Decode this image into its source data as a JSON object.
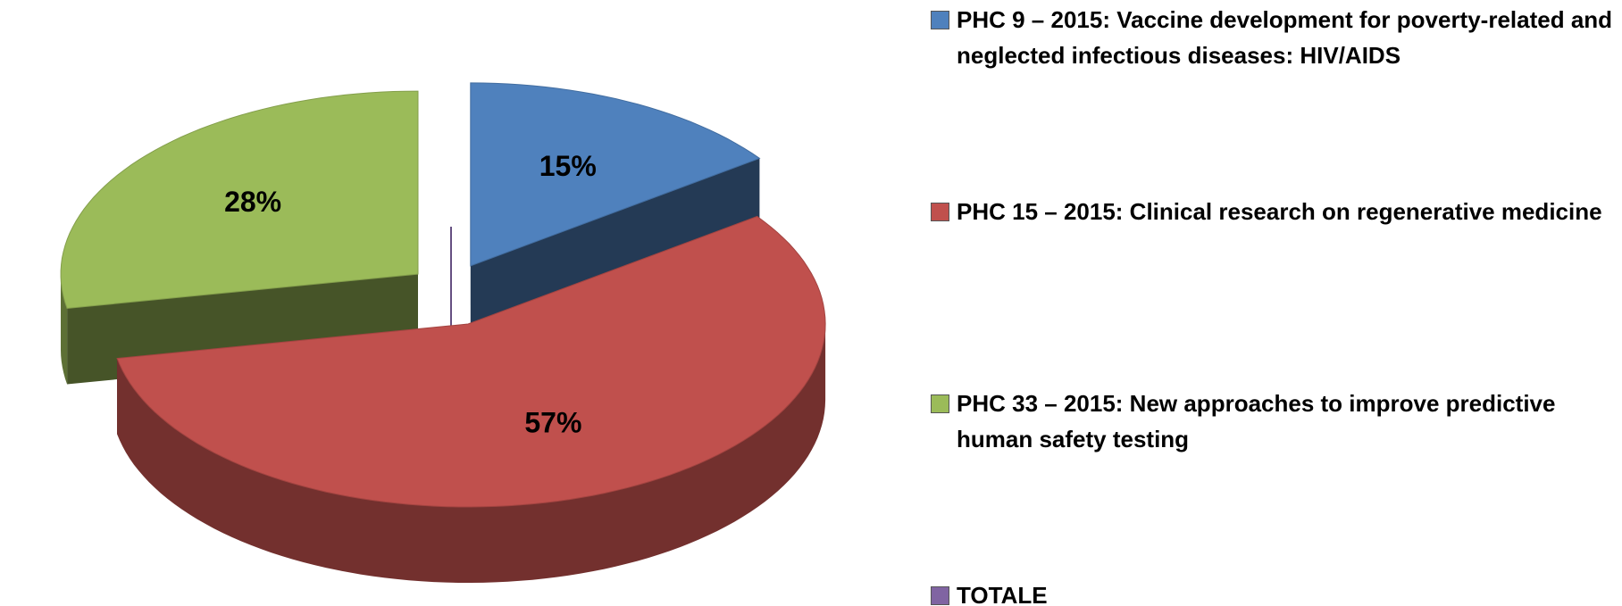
{
  "chart_data": {
    "type": "pie",
    "categories": [
      "PHC 9 – 2015: Vaccine development for poverty-related and neglected infectious diseases: HIV/AIDS",
      "PHC 15 – 2015: Clinical research on regenerative medicine",
      "PHC 33 – 2015: New approaches to improve predictive human safety testing",
      "TOTALE"
    ],
    "values": [
      15,
      57,
      28,
      0
    ],
    "value_labels": [
      "15%",
      "57%",
      "28%",
      null
    ],
    "colors": [
      "#4f81bd",
      "#c0504d",
      "#9bbb59",
      "#8064a2"
    ],
    "legend": "right"
  }
}
